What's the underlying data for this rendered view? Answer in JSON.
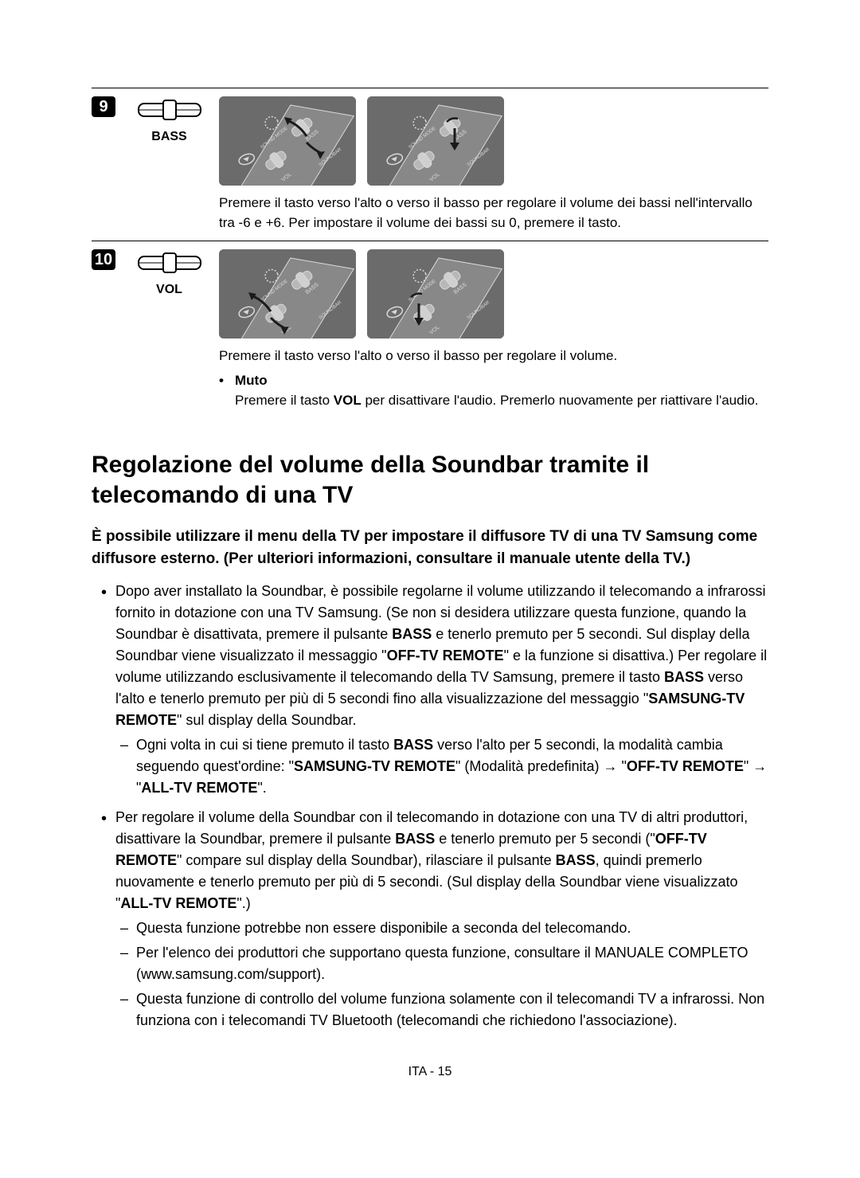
{
  "rows": [
    {
      "num": "9",
      "label": "BASS",
      "desc": "Premere il tasto verso l'alto o verso il basso per regolare il volume dei bassi nell'intervallo tra -6 e +6. Per impostare il volume dei bassi su 0, premere il tasto.",
      "bullets": []
    },
    {
      "num": "10",
      "label": "VOL",
      "desc": "Premere il tasto verso l'alto o verso il basso per regolare il volume.",
      "bullets": [
        {
          "title": "Muto",
          "text_pre": "Premere il tasto ",
          "bold1": "VOL",
          "text_post": " per disattivare l'audio. Premerlo nuovamente per riattivare l'audio."
        }
      ]
    }
  ],
  "heading": "Regolazione del volume della Soundbar tramite il telecomando di una TV",
  "subhead": "È possibile utilizzare il menu della TV per impostare il diffusore TV di una TV Samsung come diffusore esterno. (Per ulteriori informazioni, consultare il manuale utente della TV.)",
  "li1": {
    "p1": "Dopo aver installato la Soundbar, è possibile regolarne il volume utilizzando il telecomando a infrarossi fornito in dotazione con una TV Samsung. (Se non si desidera utilizzare questa funzione, quando la Soundbar è disattivata, premere il pulsante ",
    "b1": "BASS",
    "p2": " e tenerlo premuto per 5 secondi. Sul display della Soundbar viene visualizzato il messaggio \"",
    "b2": "OFF-TV REMOTE",
    "p3": "\" e la funzione si disattiva.) Per regolare il volume utilizzando esclusivamente il telecomando della TV Samsung, premere il tasto ",
    "b3": "BASS",
    "p4": " verso l'alto e tenerlo premuto per più di 5 secondi fino alla visualizzazione del messaggio \"",
    "b4": "SAMSUNG-TV REMOTE",
    "p5": "\" sul display della Soundbar."
  },
  "li1_sub": {
    "p1": "Ogni volta in cui si tiene premuto il tasto ",
    "b1": "BASS",
    "p2": " verso l'alto per 5 secondi, la modalità cambia seguendo quest'ordine: \"",
    "b2": "SAMSUNG-TV REMOTE",
    "p3": "\" (Modalità predefinita) → \"",
    "b3": "OFF-TV REMOTE",
    "p4": "\" → \"",
    "b4": "ALL-TV REMOTE",
    "p5": "\"."
  },
  "li2": {
    "p1": "Per regolare il volume della Soundbar con il telecomando in dotazione con una TV di altri produttori, disattivare la Soundbar, premere il pulsante ",
    "b1": "BASS",
    "p2": " e tenerlo premuto per 5 secondi (\"",
    "b2": "OFF-TV REMOTE",
    "p3": "\" compare sul display della Soundbar), rilasciare il pulsante ",
    "b3": "BASS",
    "p4": ", quindi premerlo nuovamente e tenerlo premuto per più di 5 secondi. (Sul display della Soundbar viene visualizzato \"",
    "b4": "ALL-TV REMOTE",
    "p5": "\".)"
  },
  "li2_sub1": "Questa funzione potrebbe non essere disponibile a seconda del telecomando.",
  "li2_sub2": "Per l'elenco dei produttori che supportano questa funzione, consultare il MANUALE COMPLETO (www.samsung.com/support).",
  "li2_sub3": "Questa funzione di controllo del volume funziona solamente con il telecomandi TV a infrarossi. Non funziona con i telecomandi TV Bluetooth (telecomandi che richiedono l'associazione).",
  "footer": "ITA - 15",
  "remote_svg": {
    "bg": "#6b6b6b",
    "face": "#888888",
    "stroke": "#d9d9d9",
    "arrow": "#1a1a1a",
    "label_sound": "SOUND MODE",
    "label_bass": "BASS",
    "label_vol": "VOL",
    "label_soundbar": "SOUNDBAR"
  }
}
